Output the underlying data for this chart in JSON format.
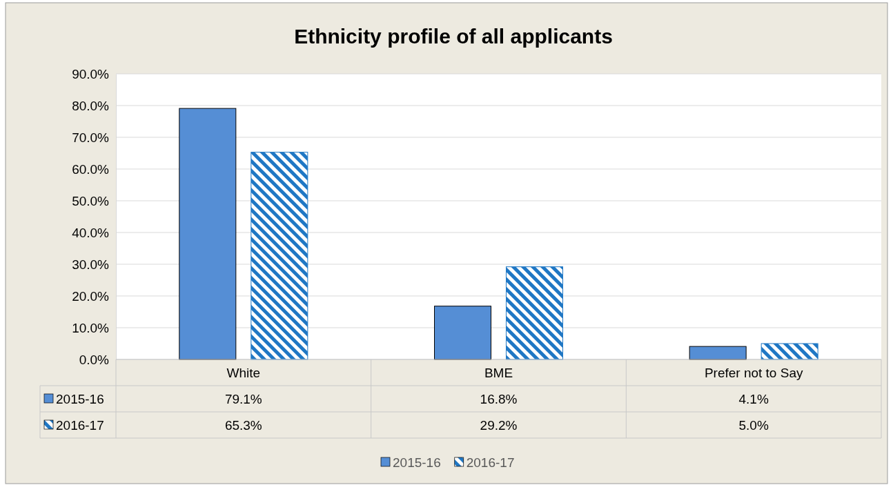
{
  "chart_data": {
    "type": "bar",
    "title": "Ethnicity profile of all applicants",
    "categories": [
      "White",
      "BME",
      "Prefer not to Say"
    ],
    "series": [
      {
        "name": "2015-16",
        "color": "#558ed5",
        "values": [
          79.1,
          16.8,
          4.1
        ],
        "value_labels": [
          "79.1%",
          "16.8%",
          "4.1%"
        ]
      },
      {
        "name": "2016-17",
        "color": "#1f77c4",
        "values": [
          65.3,
          29.2,
          5.0
        ],
        "value_labels": [
          "65.3%",
          "29.2%",
          "5.0%"
        ]
      }
    ],
    "ylim": [
      0,
      90
    ],
    "yticks": [
      {
        "value": 0,
        "label": "0.0%"
      },
      {
        "value": 10,
        "label": "10.0%"
      },
      {
        "value": 20,
        "label": "20.0%"
      },
      {
        "value": 30,
        "label": "30.0%"
      },
      {
        "value": 40,
        "label": "40.0%"
      },
      {
        "value": 50,
        "label": "50.0%"
      },
      {
        "value": 60,
        "label": "60.0%"
      },
      {
        "value": 70,
        "label": "70.0%"
      },
      {
        "value": 80,
        "label": "80.0%"
      },
      {
        "value": 90,
        "label": "90.0%"
      }
    ],
    "grid": "y",
    "legend": "bottom"
  }
}
